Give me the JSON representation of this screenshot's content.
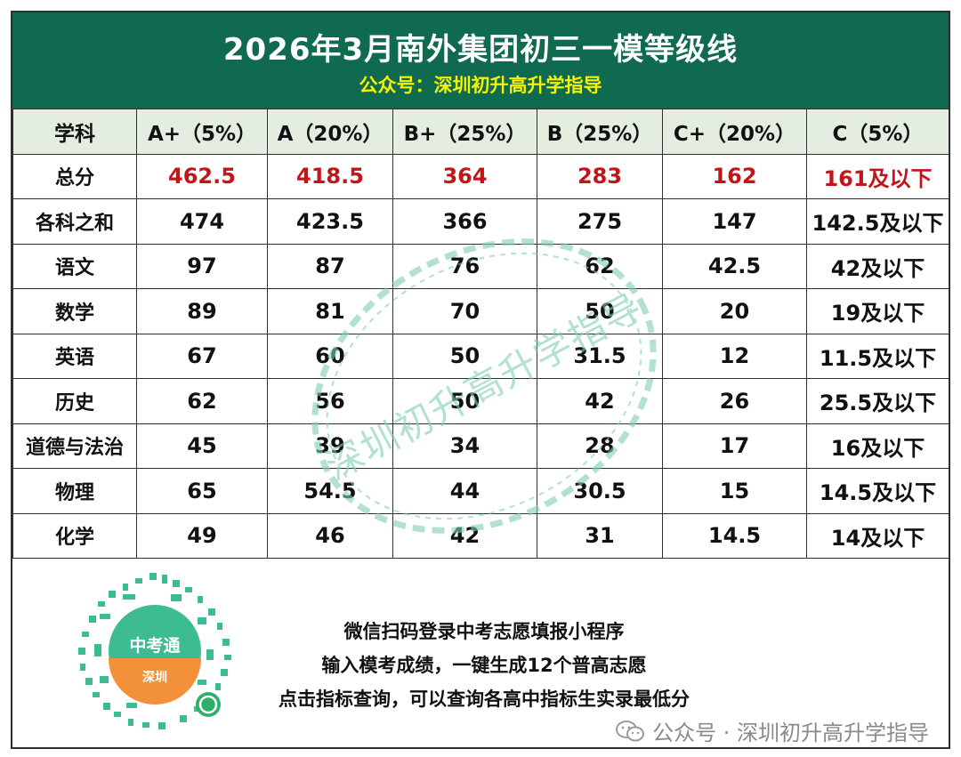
{
  "header": {
    "title": "2026年3月南外集团初三一模等级线",
    "subtitle": "公众号：深圳初升高升学指导"
  },
  "table": {
    "columns": [
      "学科",
      "A+（5%）",
      "A（20%）",
      "B+（25%）",
      "B（25%）",
      "C+（20%）",
      "C（5%）"
    ],
    "rows": [
      {
        "subject": "总分",
        "values": [
          "462.5",
          "418.5",
          "364",
          "283",
          "162",
          "161及以下"
        ]
      },
      {
        "subject": "各科之和",
        "values": [
          "474",
          "423.5",
          "366",
          "275",
          "147",
          "142.5及以下"
        ]
      },
      {
        "subject": "语文",
        "values": [
          "97",
          "87",
          "76",
          "62",
          "42.5",
          "42及以下"
        ]
      },
      {
        "subject": "数学",
        "values": [
          "89",
          "81",
          "70",
          "50",
          "20",
          "19及以下"
        ]
      },
      {
        "subject": "英语",
        "values": [
          "67",
          "60",
          "50",
          "31.5",
          "12",
          "11.5及以下"
        ]
      },
      {
        "subject": "历史",
        "values": [
          "62",
          "56",
          "50",
          "42",
          "26",
          "25.5及以下"
        ]
      },
      {
        "subject": "道德与法治",
        "values": [
          "45",
          "39",
          "34",
          "28",
          "17",
          "16及以下"
        ]
      },
      {
        "subject": "物理",
        "values": [
          "65",
          "54.5",
          "44",
          "30.5",
          "15",
          "14.5及以下"
        ]
      },
      {
        "subject": "化学",
        "values": [
          "49",
          "46",
          "42",
          "31",
          "14.5",
          "14及以下"
        ]
      }
    ]
  },
  "watermark": {
    "text": "深圳初升高升学指导"
  },
  "qr": {
    "badge_top": "中考通",
    "badge_bottom": "深圳"
  },
  "promo": {
    "line1": "微信扫码登录中考志愿填报小程序",
    "line2": "输入模考成绩，一键生成12个普高志愿",
    "line3": "点击指标查询，可以查询各高中指标生实录最低分"
  },
  "footer": {
    "wechat_label": "公众号 · 深圳初升高升学指导"
  },
  "colors": {
    "header_bg": "#0f6a4f",
    "title": "#ffffff",
    "subtitle": "#f7f200",
    "table_header_bg": "#e3eee0",
    "total_row_text": "#c0161b",
    "watermark": "#7fcfb0",
    "qr_green": "#3dbb93"
  }
}
